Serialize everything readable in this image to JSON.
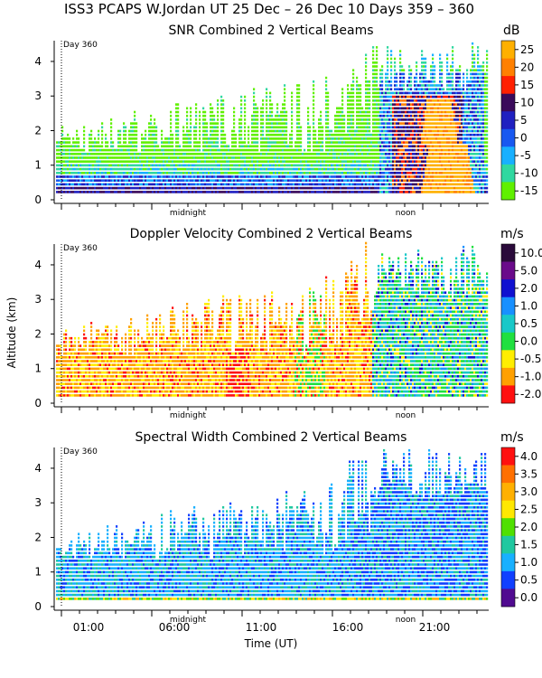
{
  "header": {
    "title": "ISS3 PCAPS W.Jordan UT  25 Dec – 26 Dec 10 Days 359 – 360"
  },
  "chart_data": [
    {
      "type": "heatmap",
      "title": "SNR Combined 2 Vertical Beams",
      "ylabel": "",
      "ylim": [
        0,
        4.6
      ],
      "yticks": [
        "0",
        "1",
        "2",
        "3",
        "4"
      ],
      "day_label": "Day 360",
      "markers": [
        "midnight",
        "noon"
      ],
      "colorbar": {
        "unit": "dB",
        "labels": [
          "25",
          "20",
          "15",
          "10",
          "5",
          "0",
          "-5",
          "-10",
          "-15"
        ],
        "colors": [
          "#ffb000",
          "#ff8000",
          "#ff2000",
          "#3a0a5a",
          "#2020c0",
          "#1858f0",
          "#18b0ff",
          "#30d8a0",
          "#60f000"
        ]
      }
    },
    {
      "type": "heatmap",
      "title": "Doppler Velocity Combined 2 Vertical Beams",
      "ylabel": "Altitude (km)",
      "ylim": [
        0,
        4.6
      ],
      "yticks": [
        "0",
        "1",
        "2",
        "3",
        "4"
      ],
      "day_label": "Day 360",
      "markers": [
        "midnight",
        "noon"
      ],
      "colorbar": {
        "unit": "m/s",
        "labels": [
          "10.0",
          "5.0",
          "2.0",
          "1.0",
          "0.5",
          "0.0",
          "-0.5",
          "-1.0",
          "-2.0"
        ],
        "colors": [
          "#2a0a3a",
          "#6a0a8a",
          "#1010d0",
          "#1890ff",
          "#18c8c8",
          "#20e040",
          "#ffee00",
          "#ffa000",
          "#ff1010"
        ]
      }
    },
    {
      "type": "heatmap",
      "title": "Spectral Width Combined 2 Vertical Beams",
      "ylabel": "",
      "ylim": [
        0,
        4.6
      ],
      "yticks": [
        "0",
        "1",
        "2",
        "3",
        "4"
      ],
      "day_label": "Day 360",
      "markers": [
        "midnight",
        "noon"
      ],
      "xticks": [
        "01:00",
        "06:00",
        "11:00",
        "16:00",
        "21:00"
      ],
      "xlabel": "Time (UT)",
      "colorbar": {
        "unit": "m/s",
        "labels": [
          "4.0",
          "3.5",
          "3.0",
          "2.5",
          "2.0",
          "1.5",
          "1.0",
          "0.5",
          "0.0"
        ],
        "colors": [
          "#ff1010",
          "#ff7000",
          "#ffb000",
          "#ffe800",
          "#50e000",
          "#20c8a0",
          "#18b0ff",
          "#1040ff",
          "#500a90"
        ]
      }
    }
  ]
}
